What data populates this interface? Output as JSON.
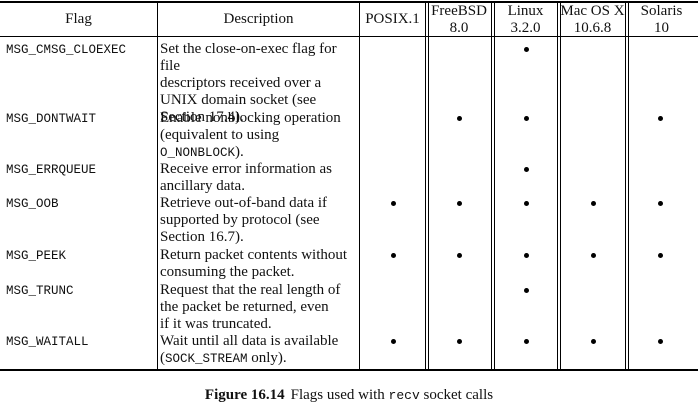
{
  "table": {
    "headers": {
      "flag": "Flag",
      "description": "Description",
      "posix": [
        "POSIX.1"
      ],
      "freebsd": [
        "FreeBSD",
        "8.0"
      ],
      "linux": [
        "Linux",
        "3.2.0"
      ],
      "macos": [
        "Mac OS X",
        "10.6.8"
      ],
      "solaris": [
        "Solaris",
        "10"
      ]
    },
    "rows": [
      {
        "flag": "MSG_CMSG_CLOEXEC",
        "description": [
          [
            {
              "t": "Set the close-on-exec flag for file"
            }
          ],
          [
            {
              "t": "descriptors received over a"
            }
          ],
          [
            {
              "t": "UNIX domain socket (see"
            }
          ],
          [
            {
              "t": "Section 17.4)."
            }
          ]
        ],
        "support": {
          "posix": false,
          "freebsd": false,
          "linux": true,
          "macos": false,
          "solaris": false
        }
      },
      {
        "flag": "MSG_DONTWAIT",
        "description": [
          [
            {
              "t": "Enable nonblocking operation"
            }
          ],
          [
            {
              "t": "(equivalent to using"
            }
          ],
          [
            {
              "t": "O_NONBLOCK",
              "mono": true
            },
            {
              "t": ")."
            }
          ]
        ],
        "support": {
          "posix": false,
          "freebsd": true,
          "linux": true,
          "macos": false,
          "solaris": true
        }
      },
      {
        "flag": "MSG_ERRQUEUE",
        "description": [
          [
            {
              "t": "Receive error information as"
            }
          ],
          [
            {
              "t": "ancillary data."
            }
          ]
        ],
        "support": {
          "posix": false,
          "freebsd": false,
          "linux": true,
          "macos": false,
          "solaris": false
        }
      },
      {
        "flag": "MSG_OOB",
        "description": [
          [
            {
              "t": "Retrieve out-of-band data if"
            }
          ],
          [
            {
              "t": "supported by protocol (see"
            }
          ],
          [
            {
              "t": "Section 16.7)."
            }
          ]
        ],
        "support": {
          "posix": true,
          "freebsd": true,
          "linux": true,
          "macos": true,
          "solaris": true
        }
      },
      {
        "flag": "MSG_PEEK",
        "description": [
          [
            {
              "t": "Return packet contents without"
            }
          ],
          [
            {
              "t": "consuming the packet."
            }
          ]
        ],
        "support": {
          "posix": true,
          "freebsd": true,
          "linux": true,
          "macos": true,
          "solaris": true
        }
      },
      {
        "flag": "MSG_TRUNC",
        "description": [
          [
            {
              "t": "Request that the real length of"
            }
          ],
          [
            {
              "t": "the packet be returned, even"
            }
          ],
          [
            {
              "t": "if it was truncated."
            }
          ]
        ],
        "support": {
          "posix": false,
          "freebsd": false,
          "linux": true,
          "macos": false,
          "solaris": false
        }
      },
      {
        "flag": "MSG_WAITALL",
        "description": [
          [
            {
              "t": "Wait until all data is available"
            }
          ],
          [
            {
              "t": "("
            },
            {
              "t": "SOCK_STREAM",
              "mono": true
            },
            {
              "t": " only)."
            }
          ]
        ],
        "support": {
          "posix": true,
          "freebsd": true,
          "linux": true,
          "macos": true,
          "solaris": true
        }
      }
    ]
  },
  "caption": {
    "figure": "Figure 16.14",
    "text_before": "Flags used with ",
    "code": "recv",
    "text_after": " socket calls"
  }
}
